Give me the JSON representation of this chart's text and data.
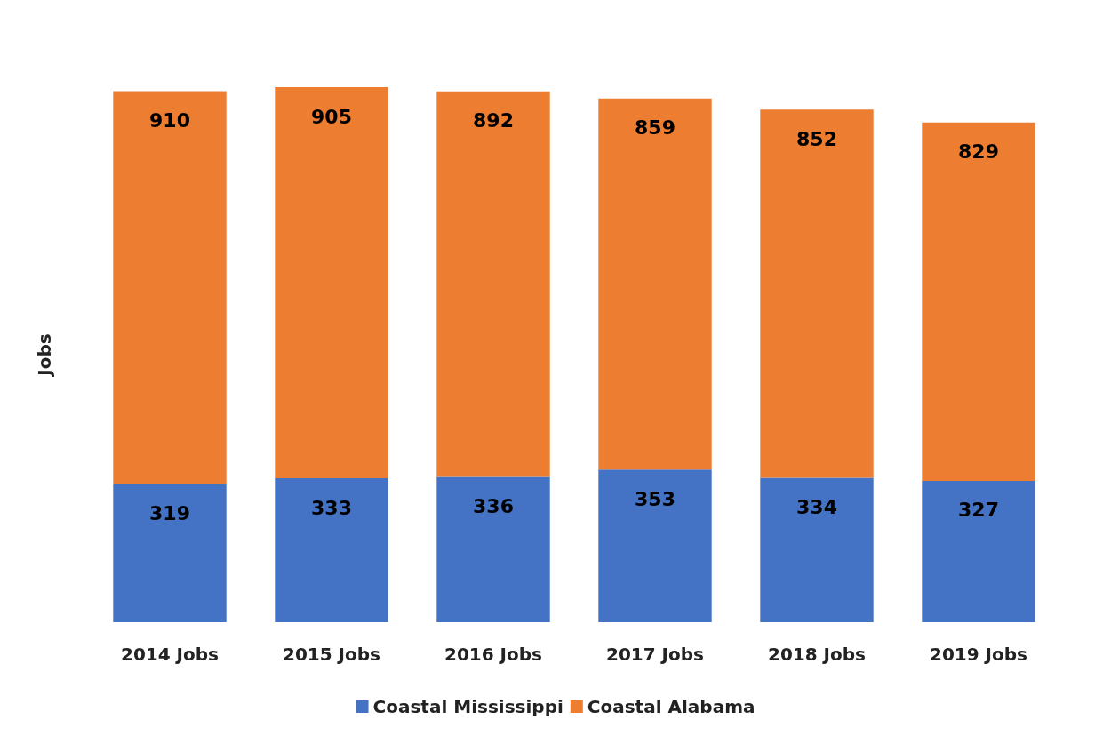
{
  "chart_data": {
    "type": "bar",
    "stacked": true,
    "ylabel": "Jobs",
    "categories": [
      "2014 Jobs",
      "2015 Jobs",
      "2016 Jobs",
      "2017 Jobs",
      "2018 Jobs",
      "2019 Jobs"
    ],
    "series": [
      {
        "name": "Coastal Mississippi",
        "color": "#4472c4",
        "values": [
          319,
          333,
          336,
          353,
          334,
          327
        ]
      },
      {
        "name": "Coastal Alabama",
        "color": "#ed7d31",
        "values": [
          910,
          905,
          892,
          859,
          852,
          829
        ]
      }
    ],
    "data_labels": true,
    "legend": "bottom",
    "grid": false
  }
}
